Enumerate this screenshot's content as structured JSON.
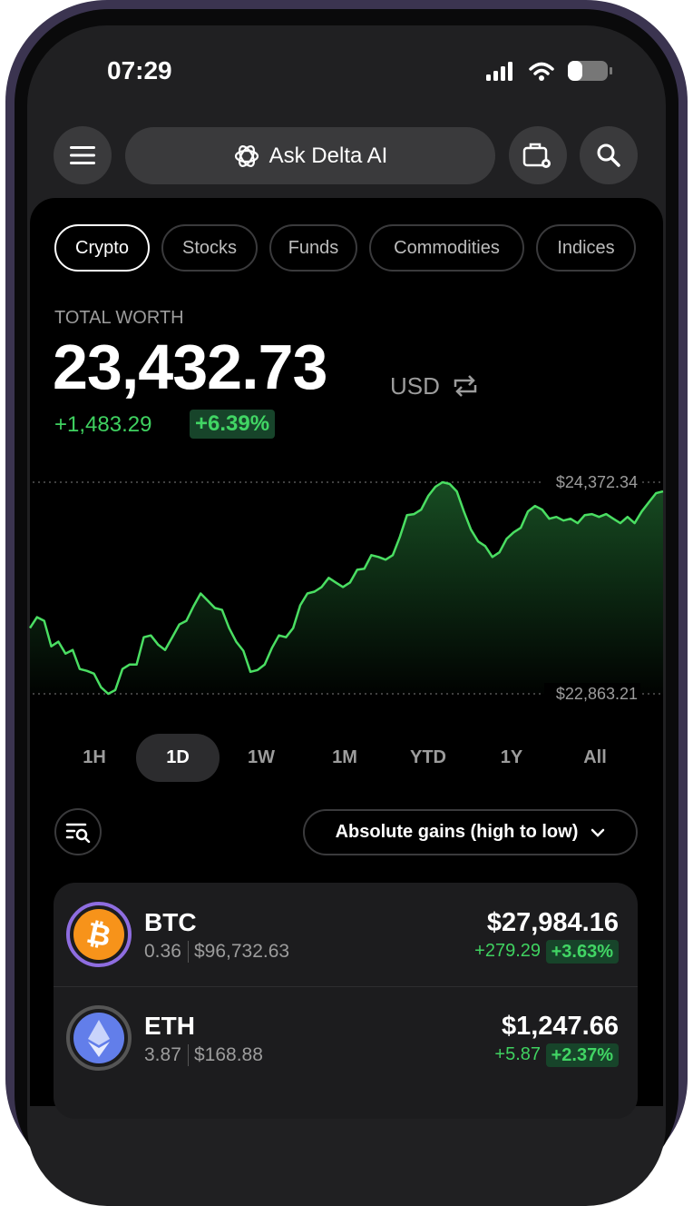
{
  "status_bar": {
    "time": "07:29"
  },
  "header": {
    "search_label": "Ask Delta AI"
  },
  "tabs": [
    "Crypto",
    "Stocks",
    "Funds",
    "Commodities",
    "Indices"
  ],
  "summary": {
    "label": "TOTAL WORTH",
    "value": "23,432.73",
    "currency": "USD",
    "change": "+1,483.29",
    "change_percent": "+6.39%"
  },
  "chart_data": {
    "type": "line",
    "color": "#4ade62",
    "values": [
      23332,
      23410,
      23384,
      23202,
      23235,
      23150,
      23176,
      23040,
      23027,
      23007,
      22910,
      22863.21,
      22890,
      23040,
      23072,
      23072,
      23267,
      23280,
      23215,
      23176,
      23267,
      23358,
      23384,
      23488,
      23579,
      23527,
      23475,
      23462,
      23332,
      23235,
      23170,
      23020,
      23033,
      23072,
      23189,
      23280,
      23267,
      23332,
      23495,
      23579,
      23592,
      23625,
      23690,
      23657,
      23625,
      23657,
      23748,
      23755,
      23852,
      23839,
      23820,
      23852,
      23982,
      24138,
      24145,
      24177,
      24275,
      24340,
      24372.34,
      24360,
      24307,
      24164,
      24034,
      23950,
      23917,
      23839,
      23872,
      23969,
      24015,
      24047,
      24164,
      24203,
      24177,
      24112,
      24125,
      24099,
      24112,
      24080,
      24138,
      24145,
      24125,
      24145,
      24112,
      24080,
      24125,
      24080,
      24164,
      24229,
      24294,
      24307
    ],
    "high": {
      "value": 24372.34,
      "label": "$24,372.34"
    },
    "low": {
      "value": 22863.21,
      "label": "$22,863.21"
    }
  },
  "ranges": [
    "1H",
    "1D",
    "1W",
    "1M",
    "YTD",
    "1Y",
    "All"
  ],
  "sort": {
    "label": "Absolute gains (high to low)"
  },
  "assets": [
    {
      "symbol": "BTC",
      "amount": "0.36",
      "price": "$96,732.63",
      "value": "$27,984.16",
      "change": "+279.29",
      "change_percent": "+3.63%"
    },
    {
      "symbol": "ETH",
      "amount": "3.87",
      "price": "$168.88",
      "value": "$1,247.66",
      "change": "+5.87",
      "change_percent": "+2.37%"
    }
  ]
}
